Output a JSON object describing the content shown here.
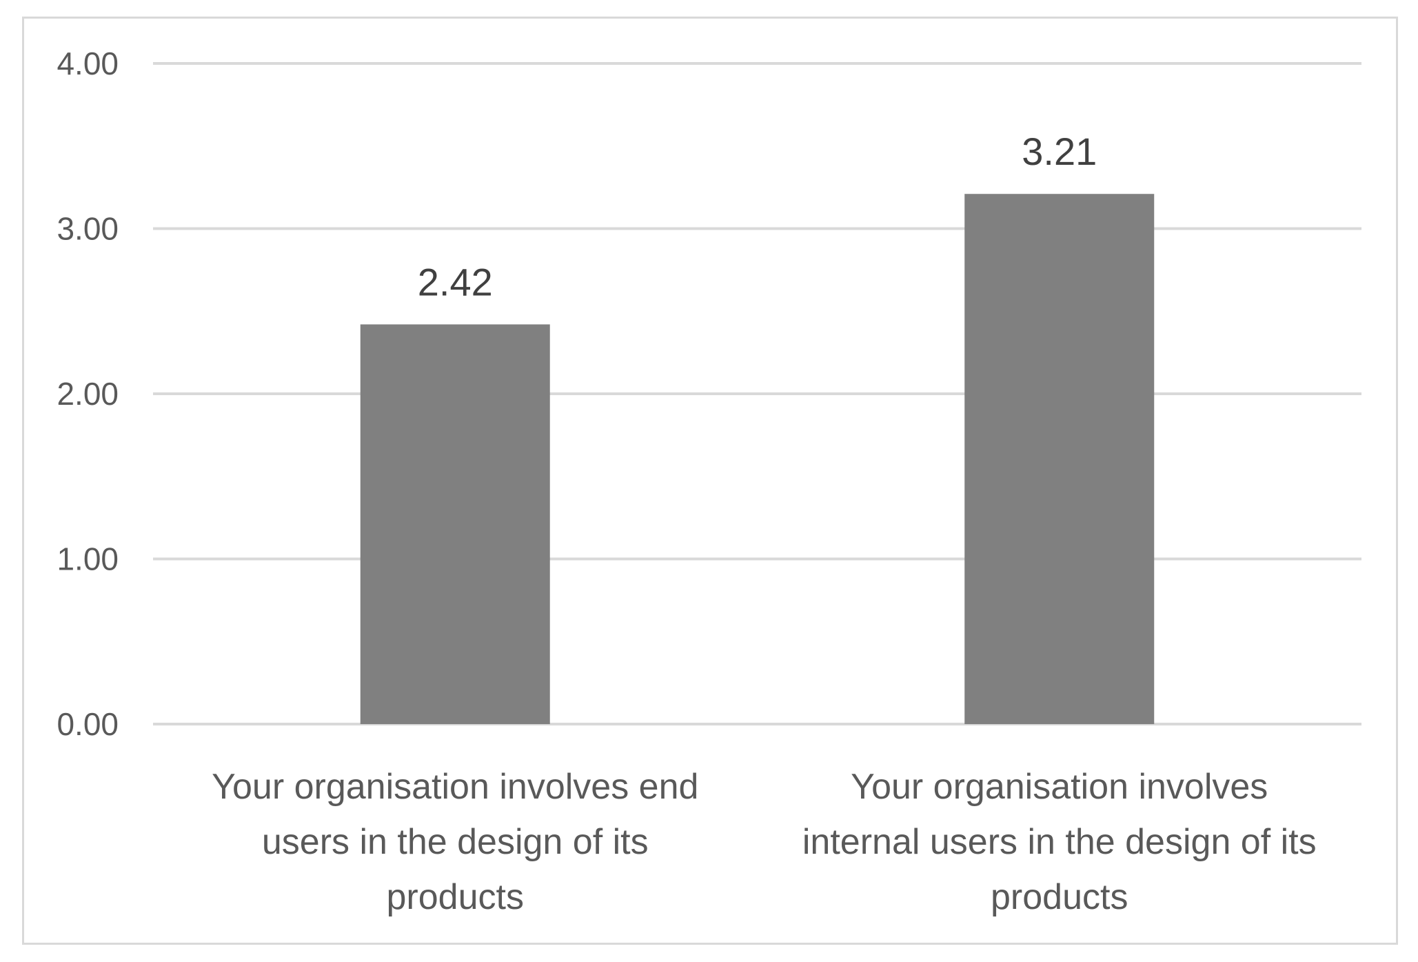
{
  "chart_data": {
    "type": "bar",
    "categories": [
      [
        "Your organisation involves end",
        "users in the design of its",
        "products"
      ],
      [
        "Your organisation involves",
        "internal users in the design of its",
        "products"
      ]
    ],
    "values": [
      2.42,
      3.21
    ],
    "data_labels": [
      "2.42",
      "3.21"
    ],
    "y_ticks": [
      "0.00",
      "1.00",
      "2.00",
      "3.00",
      "4.00"
    ],
    "ylim": [
      0,
      4
    ],
    "grid": true,
    "title": "",
    "xlabel": "",
    "ylabel": "",
    "legend": "none",
    "colors": {
      "bar": "#808080",
      "gridline": "#d9d9d9",
      "border": "#d9d9d9"
    }
  }
}
